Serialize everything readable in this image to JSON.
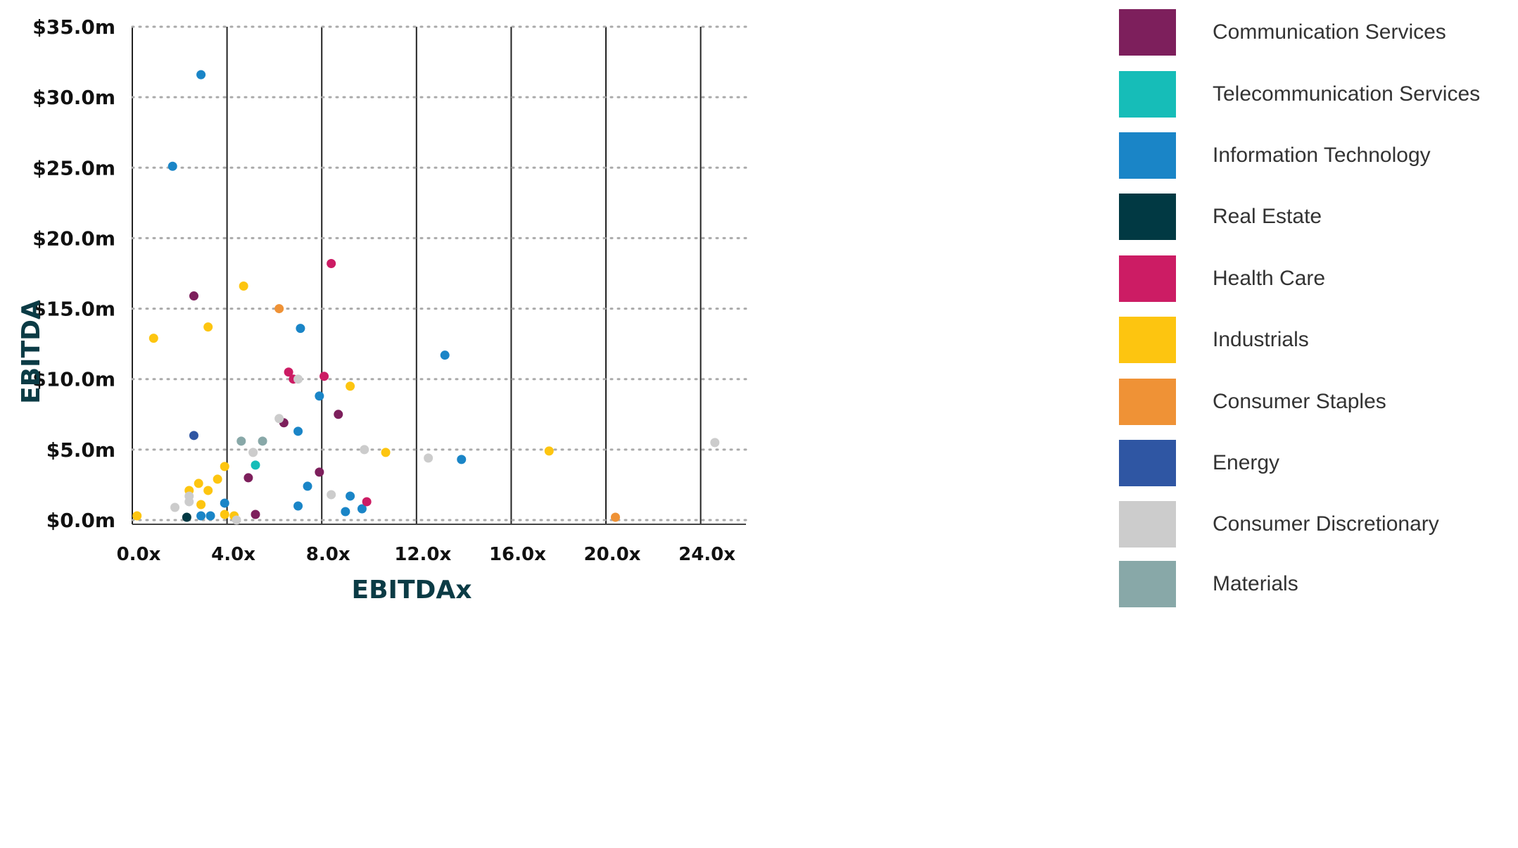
{
  "chart_data": {
    "type": "scatter",
    "title": "",
    "xlabel": "EBITDAx",
    "ylabel": "EBITDA",
    "xlim": [
      0,
      26
    ],
    "ylim": [
      0,
      35
    ],
    "x_ticks": [
      0,
      4,
      8,
      12,
      16,
      20,
      24
    ],
    "x_tick_labels": [
      "0.0x",
      "4.0x",
      "8.0x",
      "12.0x",
      "16.0x",
      "20.0x",
      "24.0x"
    ],
    "y_ticks": [
      0,
      5,
      10,
      15,
      20,
      25,
      30,
      35
    ],
    "y_tick_labels": [
      "$0.0m",
      "$5.0m",
      "$10.0m",
      "$15.0m",
      "$20.0m",
      "$25.0m",
      "$30.0m",
      "$35.0m"
    ],
    "grid": {
      "vertical": "solid",
      "horizontal": "dotted"
    },
    "legend_position": "right",
    "series": [
      {
        "name": "Communication Services",
        "color": "#7d1f5c",
        "points": [
          [
            6.4,
            6.9
          ],
          [
            8.7,
            7.5
          ],
          [
            4.9,
            3.0
          ],
          [
            7.9,
            3.4
          ],
          [
            5.2,
            0.4
          ],
          [
            2.6,
            15.9
          ]
        ]
      },
      {
        "name": "Telecommunication Services",
        "color": "#16bdb8",
        "points": [
          [
            5.2,
            3.9
          ]
        ]
      },
      {
        "name": "Information Technology",
        "color": "#1a85c7",
        "points": [
          [
            2.9,
            31.6
          ],
          [
            1.7,
            25.1
          ],
          [
            7.1,
            13.6
          ],
          [
            13.2,
            11.7
          ],
          [
            7.9,
            8.8
          ],
          [
            7.0,
            6.3
          ],
          [
            13.9,
            4.3
          ],
          [
            7.4,
            2.4
          ],
          [
            9.2,
            1.7
          ],
          [
            7.0,
            1.0
          ],
          [
            3.9,
            1.2
          ],
          [
            9.0,
            0.6
          ],
          [
            9.7,
            0.8
          ],
          [
            2.9,
            0.3
          ],
          [
            3.3,
            0.3
          ]
        ]
      },
      {
        "name": "Real Estate",
        "color": "#013943",
        "points": [
          [
            2.3,
            0.2
          ]
        ]
      },
      {
        "name": "Health Care",
        "color": "#cc1c64",
        "points": [
          [
            8.4,
            18.2
          ],
          [
            6.6,
            10.5
          ],
          [
            6.8,
            10.0
          ],
          [
            8.1,
            10.2
          ],
          [
            9.9,
            1.3
          ]
        ]
      },
      {
        "name": "Industrials",
        "color": "#fdc510",
        "points": [
          [
            4.7,
            16.6
          ],
          [
            3.2,
            13.7
          ],
          [
            0.9,
            12.9
          ],
          [
            9.2,
            9.5
          ],
          [
            10.7,
            4.8
          ],
          [
            17.6,
            4.9
          ],
          [
            3.9,
            3.8
          ],
          [
            3.6,
            2.9
          ],
          [
            2.8,
            2.6
          ],
          [
            2.4,
            2.1
          ],
          [
            3.2,
            2.1
          ],
          [
            2.9,
            1.1
          ],
          [
            0.2,
            0.3
          ],
          [
            3.9,
            0.4
          ],
          [
            4.3,
            0.3
          ]
        ]
      },
      {
        "name": "Consumer Staples",
        "color": "#ef9236",
        "points": [
          [
            6.2,
            15.0
          ],
          [
            20.4,
            0.2
          ]
        ]
      },
      {
        "name": "Energy",
        "color": "#2f56a3",
        "points": [
          [
            2.6,
            6.0
          ]
        ]
      },
      {
        "name": "Consumer Discretionary",
        "color": "#cccccc",
        "points": [
          [
            7.0,
            10.0
          ],
          [
            6.2,
            7.2
          ],
          [
            9.8,
            5.0
          ],
          [
            5.1,
            4.8
          ],
          [
            12.5,
            4.4
          ],
          [
            24.6,
            5.5
          ],
          [
            8.4,
            1.8
          ],
          [
            2.4,
            1.7
          ],
          [
            2.4,
            1.3
          ],
          [
            1.8,
            0.9
          ],
          [
            4.4,
            0.0
          ]
        ]
      },
      {
        "name": "Materials",
        "color": "#88a8a8",
        "points": [
          [
            4.6,
            5.6
          ],
          [
            5.5,
            5.6
          ]
        ]
      }
    ]
  }
}
